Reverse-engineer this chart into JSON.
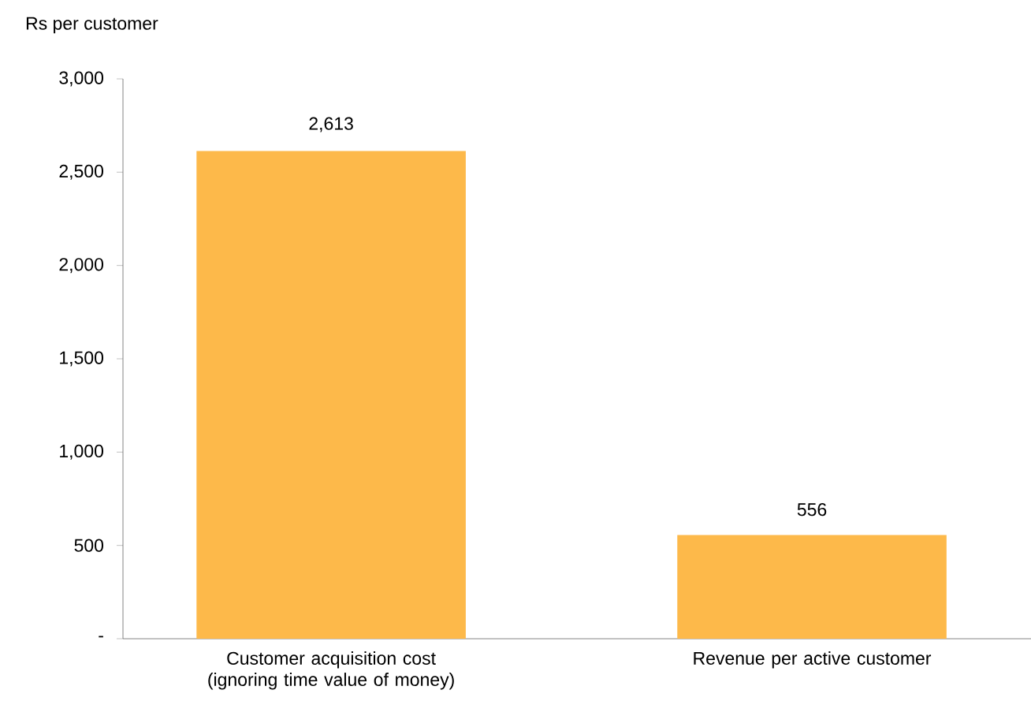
{
  "chart_data": {
    "type": "bar",
    "ylabel": "Rs per customer",
    "categories": [
      "Customer acquisition cost (ignoring time value of money)",
      "Revenue per active customer"
    ],
    "values": [
      2613,
      556
    ],
    "value_labels": [
      "2,613",
      "556"
    ],
    "color": "#fdb94a",
    "ylim": [
      0,
      3000
    ],
    "yticks": [
      {
        "value": 0,
        "label": "-"
      },
      500,
      {
        "value": 1000,
        "label": "1,000"
      },
      {
        "value": 1500,
        "label": "1,500"
      },
      {
        "value": 2000,
        "label": "2,000"
      },
      {
        "value": 2500,
        "label": "2,500"
      },
      {
        "value": 3000,
        "label": "3,000"
      }
    ],
    "grid": false
  }
}
